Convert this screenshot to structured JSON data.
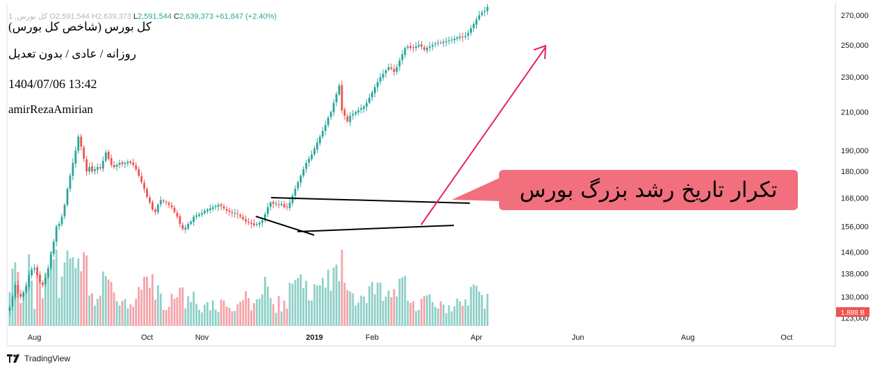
{
  "header": {
    "ohlc_row": {
      "series_stub": "1 ,كل بورس",
      "open_label": "O",
      "open_value": "2,591,544",
      "high_label": "H",
      "high_value": "2,639,373",
      "low_label": "L",
      "low_value": "2,591,544",
      "close_label": "C",
      "close_value": "2,639,373",
      "change": "+61,847 (+2.40%)"
    },
    "lines": [
      "كل بورس (شاخص كل بورس)",
      "روزانه / عادی / بدون تعدیل",
      "1404/07/06 13:42",
      "amirRezaAmirian"
    ]
  },
  "annotation": {
    "text": "تکرار تاریخ رشد بزرگ بورس"
  },
  "brand": {
    "name": "TradingView"
  },
  "colors": {
    "up": "#26a69a",
    "down": "#ef5350",
    "up_volume": "#8fd0c8",
    "down_volume": "#f4a3a8",
    "arrow": "#e91e63",
    "callout": "#f26f7e",
    "trendline": "#000000",
    "volume_badge": "#ef5350"
  },
  "chart_data": {
    "type": "candlestick",
    "y_axis": {
      "ticks": [
        270000,
        250000,
        230000,
        210000,
        190000,
        180000,
        168000,
        156000,
        146000,
        138000,
        130000,
        123000
      ],
      "tick_labels": [
        "270,000",
        "250,000",
        "230,000",
        "210,000",
        "190,000",
        "180,000",
        "168,000",
        "156,000",
        "146,000",
        "138,000",
        "130,000",
        "123,000"
      ],
      "scale": "log",
      "range": [
        122000,
        273000
      ]
    },
    "x_axis": {
      "labels": [
        "Aug",
        "Oct",
        "Nov",
        "2019",
        "Feb",
        "Apr",
        "Jun",
        "Aug",
        "Oct"
      ],
      "label_index": [
        9,
        50,
        70,
        111,
        132,
        170,
        207,
        247,
        283
      ]
    },
    "volume_label": "1.888 B",
    "closes": [
      126500,
      130000,
      134000,
      131000,
      130000,
      131500,
      133500,
      137500,
      139500,
      140000,
      137500,
      135000,
      134000,
      136500,
      140000,
      145000,
      150000,
      156000,
      157000,
      160000,
      165000,
      172000,
      178000,
      184000,
      190000,
      197000,
      192000,
      186000,
      180000,
      182000,
      180000,
      181000,
      182000,
      181500,
      185000,
      189000,
      186000,
      183000,
      182000,
      183000,
      184000,
      183500,
      184000,
      184500,
      184000,
      183000,
      181000,
      178000,
      175000,
      172000,
      168500,
      166000,
      163000,
      162000,
      165000,
      167000,
      166500,
      166000,
      165000,
      164000,
      162000,
      160000,
      157000,
      155000,
      155500,
      157000,
      158000,
      160000,
      160500,
      161000,
      161500,
      162500,
      163000,
      163500,
      164000,
      164500,
      165000,
      164500,
      163500,
      162500,
      162000,
      161500,
      161500,
      161000,
      160000,
      159000,
      158000,
      157500,
      157000,
      156500,
      157000,
      157500,
      158500,
      161000,
      164000,
      166000,
      165500,
      165500,
      165000,
      165500,
      164000,
      164000,
      166000,
      169000,
      172000,
      175000,
      178000,
      181000,
      184000,
      186000,
      188000,
      191000,
      194000,
      197000,
      200000,
      203000,
      207000,
      210000,
      215000,
      220000,
      225000,
      211000,
      208000,
      205000,
      208000,
      209000,
      210000,
      211000,
      212000,
      213000,
      215000,
      218000,
      221000,
      224000,
      227000,
      230000,
      232000,
      234000,
      236000,
      235000,
      233000,
      236000,
      240000,
      244000,
      248000,
      249000,
      248000,
      248000,
      249000,
      250000,
      249000,
      247000,
      248000,
      249000,
      250000,
      251000,
      251500,
      251500,
      252000,
      252500,
      253000,
      253500,
      254000,
      255000,
      255500,
      255000,
      256000,
      258000,
      261000,
      264000,
      267000,
      270000,
      272000,
      273000,
      276000
    ]
  }
}
